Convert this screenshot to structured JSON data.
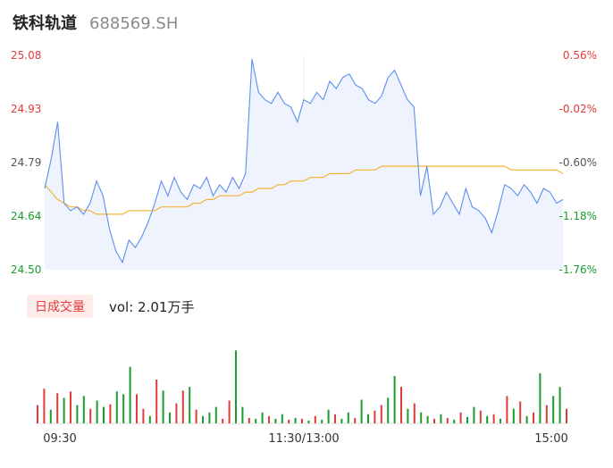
{
  "header": {
    "name": "铁科轨道",
    "code": "688569.SH"
  },
  "volume_panel": {
    "tag": "日成交量",
    "label": "vol: 2.01万手"
  },
  "colors": {
    "up": "#e23b3b",
    "down": "#1a9c2e",
    "price_line": "#5b8ff0",
    "avg_line": "#f5b335",
    "area_fill": "#eef3fd"
  },
  "chart_data": [
    {
      "type": "line",
      "title": "",
      "y_ticks": [
        "25.08",
        "24.93",
        "24.79",
        "24.64",
        "24.50"
      ],
      "y_pct_ticks": [
        "0.56%",
        "-0.02%",
        "-0.60%",
        "-1.18%",
        "-1.76%"
      ],
      "ylim": [
        24.5,
        25.08
      ],
      "x_ticks": [
        "09:30",
        "11:30/13:00",
        "15:00"
      ],
      "series": [
        {
          "role": "price",
          "values": [
            24.72,
            24.8,
            24.9,
            24.68,
            24.66,
            24.67,
            24.65,
            24.68,
            24.74,
            24.7,
            24.61,
            24.55,
            24.52,
            24.58,
            24.56,
            24.59,
            24.63,
            24.68,
            24.74,
            24.7,
            24.75,
            24.71,
            24.69,
            24.73,
            24.72,
            24.75,
            24.7,
            24.73,
            24.71,
            24.75,
            24.72,
            24.76,
            25.07,
            24.98,
            24.96,
            24.95,
            24.98,
            24.95,
            24.94,
            24.9,
            24.96,
            24.95,
            24.98,
            24.96,
            25.01,
            24.99,
            25.02,
            25.03,
            25.0,
            24.99,
            24.96,
            24.95,
            24.97,
            25.02,
            25.04,
            25.0,
            24.96,
            24.94,
            24.7,
            24.78,
            24.65,
            24.67,
            24.71,
            24.68,
            24.65,
            24.72,
            24.67,
            24.66,
            24.64,
            24.6,
            24.66,
            24.73,
            24.72,
            24.7,
            24.73,
            24.71,
            24.68,
            24.72,
            24.71,
            24.68,
            24.69
          ]
        },
        {
          "role": "avg",
          "values": [
            24.73,
            24.71,
            24.69,
            24.68,
            24.67,
            24.67,
            24.66,
            24.66,
            24.65,
            24.65,
            24.65,
            24.65,
            24.65,
            24.66,
            24.66,
            24.66,
            24.66,
            24.66,
            24.67,
            24.67,
            24.67,
            24.67,
            24.67,
            24.68,
            24.68,
            24.69,
            24.69,
            24.7,
            24.7,
            24.7,
            24.7,
            24.71,
            24.71,
            24.72,
            24.72,
            24.72,
            24.73,
            24.73,
            24.74,
            24.74,
            24.74,
            24.75,
            24.75,
            24.75,
            24.76,
            24.76,
            24.76,
            24.76,
            24.77,
            24.77,
            24.77,
            24.77,
            24.78,
            24.78,
            24.78,
            24.78,
            24.78,
            24.78,
            24.78,
            24.78,
            24.78,
            24.78,
            24.78,
            24.78,
            24.78,
            24.78,
            24.78,
            24.78,
            24.78,
            24.78,
            24.78,
            24.78,
            24.77,
            24.77,
            24.77,
            24.77,
            24.77,
            24.77,
            24.77,
            24.77,
            24.76
          ]
        }
      ]
    },
    {
      "type": "bar",
      "title": "",
      "ylim": [
        0,
        1.0
      ],
      "values": [
        0.2,
        0.38,
        0.15,
        0.33,
        0.28,
        0.35,
        0.2,
        0.3,
        0.16,
        0.25,
        0.18,
        0.21,
        0.35,
        0.32,
        0.62,
        0.32,
        0.16,
        0.08,
        0.48,
        0.36,
        0.12,
        0.22,
        0.36,
        0.4,
        0.15,
        0.08,
        0.12,
        0.18,
        0.05,
        0.25,
        0.8,
        0.18,
        0.06,
        0.05,
        0.12,
        0.08,
        0.05,
        0.1,
        0.04,
        0.06,
        0.05,
        0.03,
        0.08,
        0.04,
        0.15,
        0.1,
        0.05,
        0.12,
        0.06,
        0.26,
        0.1,
        0.14,
        0.2,
        0.28,
        0.52,
        0.4,
        0.16,
        0.22,
        0.12,
        0.08,
        0.05,
        0.1,
        0.06,
        0.04,
        0.12,
        0.07,
        0.18,
        0.14,
        0.08,
        0.1,
        0.05,
        0.3,
        0.16,
        0.24,
        0.08,
        0.12,
        0.55,
        0.2,
        0.3,
        0.4,
        0.16
      ],
      "up": [
        true,
        true,
        false,
        true,
        false,
        true,
        false,
        false,
        true,
        false,
        false,
        true,
        false,
        false,
        false,
        true,
        true,
        false,
        true,
        false,
        false,
        true,
        true,
        false,
        true,
        false,
        false,
        false,
        true,
        true,
        false,
        false,
        true,
        false,
        false,
        true,
        false,
        false,
        true,
        false,
        true,
        false,
        true,
        false,
        false,
        true,
        false,
        false,
        true,
        false,
        false,
        true,
        true,
        false,
        false,
        true,
        false,
        true,
        false,
        false,
        true,
        false,
        true,
        false,
        true,
        false,
        false,
        true,
        false,
        true,
        false,
        true,
        false,
        true,
        false,
        true,
        false,
        true,
        false,
        false,
        true
      ]
    }
  ]
}
